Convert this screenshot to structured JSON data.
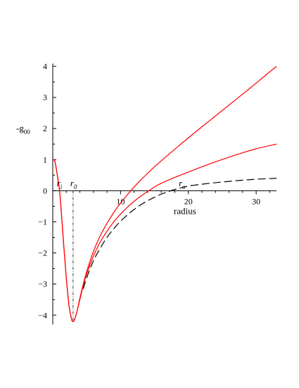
{
  "chart_data": {
    "type": "line",
    "xlabel": "radius",
    "ylabel_main": "-g",
    "ylabel_sub": "00",
    "xlim": [
      0,
      33
    ],
    "ylim": [
      -4.3,
      4.0
    ],
    "xticks": [
      10,
      20,
      30
    ],
    "yticks": [
      -4,
      -3,
      -2,
      -1,
      0,
      1,
      2,
      3,
      4
    ],
    "colors": {
      "red": "#ff0000",
      "black": "#000000"
    },
    "annotations": [
      {
        "main": "r",
        "sub": "i",
        "x": 1.0,
        "y": 0.05
      },
      {
        "main": "r",
        "sub": "0",
        "x": 3.0,
        "y": 0.05
      },
      {
        "main": "r",
        "sub": "o",
        "x": 19.0,
        "y": 0.05
      }
    ],
    "vertical_marker": {
      "x": 3.0,
      "y_from": 0,
      "y_to": -4.2,
      "style": "dash-dot"
    },
    "series": [
      {
        "color": "red",
        "style": "solid",
        "x": [
          0,
          0.3,
          0.6,
          1.0,
          1.3,
          1.6,
          2.0,
          2.4,
          2.8,
          3.0,
          3.2,
          3.6,
          4.0,
          4.5,
          5,
          6,
          7,
          8,
          9,
          10,
          11,
          12,
          13,
          14,
          15,
          17,
          19,
          21,
          23,
          25,
          27,
          29,
          31,
          33
        ],
        "y": [
          1.0,
          0.95,
          0.6,
          0.0,
          -0.8,
          -1.7,
          -2.8,
          -3.7,
          -4.15,
          -4.2,
          -4.15,
          -3.85,
          -3.45,
          -3.0,
          -2.6,
          -1.95,
          -1.45,
          -1.05,
          -0.7,
          -0.4,
          -0.13,
          0.12,
          0.35,
          0.56,
          0.77,
          1.15,
          1.52,
          1.88,
          2.23,
          2.58,
          2.93,
          3.28,
          3.64,
          4.0
        ]
      },
      {
        "color": "red",
        "style": "solid",
        "x": [
          0,
          0.3,
          0.6,
          1.0,
          1.3,
          1.6,
          2.0,
          2.4,
          2.8,
          3.0,
          3.2,
          3.6,
          4.0,
          4.5,
          5,
          6,
          7,
          8,
          9,
          10,
          11,
          12,
          13,
          14,
          15,
          16,
          18,
          20,
          22,
          24,
          26,
          28,
          30,
          33
        ],
        "y": [
          1.0,
          0.95,
          0.6,
          0.0,
          -0.8,
          -1.7,
          -2.8,
          -3.7,
          -4.15,
          -4.2,
          -4.15,
          -3.85,
          -3.5,
          -3.05,
          -2.68,
          -2.1,
          -1.65,
          -1.3,
          -1.0,
          -0.75,
          -0.53,
          -0.34,
          -0.17,
          -0.02,
          0.12,
          0.24,
          0.43,
          0.6,
          0.77,
          0.93,
          1.08,
          1.22,
          1.35,
          1.5
        ]
      },
      {
        "color": "black",
        "style": "dashed",
        "x": [
          4.5,
          5,
          6,
          7,
          8,
          9,
          10,
          11,
          12,
          13,
          14,
          15,
          16,
          17,
          18,
          19,
          20,
          22,
          24,
          26,
          28,
          30,
          33
        ],
        "y": [
          -3.15,
          -2.8,
          -2.25,
          -1.85,
          -1.5,
          -1.22,
          -0.98,
          -0.78,
          -0.6,
          -0.45,
          -0.32,
          -0.21,
          -0.11,
          -0.03,
          0.04,
          0.1,
          0.15,
          0.21,
          0.26,
          0.3,
          0.34,
          0.37,
          0.4
        ]
      }
    ]
  }
}
